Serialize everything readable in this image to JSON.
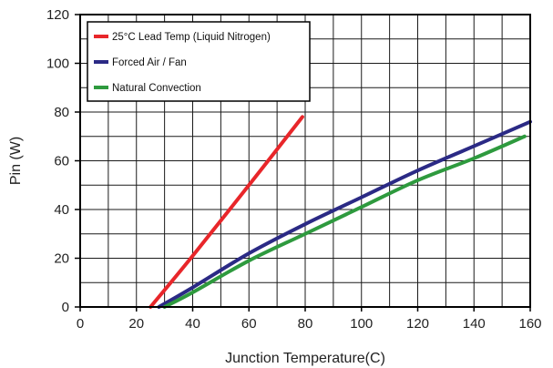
{
  "chart_data": {
    "type": "line",
    "xlabel": "Junction Temperature(C)",
    "ylabel": "Pin (W)",
    "xlim": [
      0,
      160
    ],
    "ylim": [
      0,
      120
    ],
    "xticks": [
      0,
      20,
      40,
      60,
      80,
      100,
      120,
      140,
      160
    ],
    "yticks": [
      0,
      20,
      40,
      60,
      80,
      100,
      120
    ],
    "grid_x_step": 10,
    "grid_y_step": 10,
    "grid": true,
    "legend_position": "top-left",
    "series": [
      {
        "name": "25°C Lead Temp (Liquid Nitrogen)",
        "color": "#e8262a",
        "x": [
          25,
          40,
          60,
          79
        ],
        "y": [
          0,
          21,
          50,
          78
        ]
      },
      {
        "name": "Forced Air / Fan",
        "color": "#2b2a85",
        "x": [
          28,
          40,
          60,
          80,
          100,
          120,
          140,
          160
        ],
        "y": [
          0,
          8,
          22,
          34,
          45,
          56,
          66,
          76
        ]
      },
      {
        "name": "Natural Convection",
        "color": "#2e9a3e",
        "x": [
          30,
          40,
          60,
          80,
          100,
          120,
          140,
          158
        ],
        "y": [
          0,
          6,
          19,
          30,
          41,
          52,
          61,
          70
        ]
      }
    ]
  }
}
